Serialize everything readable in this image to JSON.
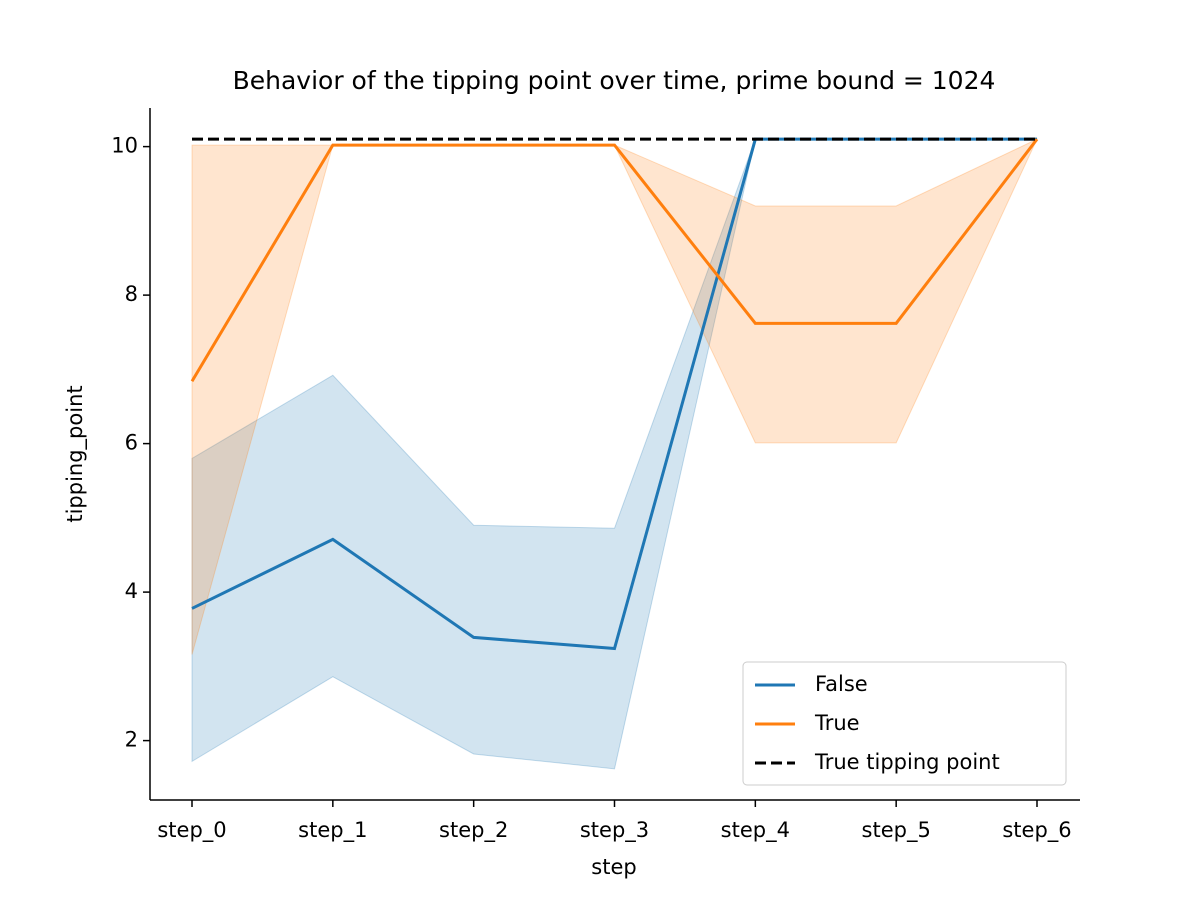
{
  "chart_data": {
    "type": "line",
    "title": "Behavior of the tipping point over time, prime bound = 1024",
    "x_label": "step",
    "y_label": "tipping_point",
    "categories": [
      "step_0",
      "step_1",
      "step_2",
      "step_3",
      "step_4",
      "step_5",
      "step_6"
    ],
    "series": [
      {
        "name": "False",
        "color": "#1f77b4",
        "values": [
          3.78,
          4.71,
          3.39,
          3.24,
          10.1,
          10.1,
          10.1
        ],
        "lower": [
          1.72,
          2.86,
          1.82,
          1.62,
          10.1,
          10.1,
          10.1
        ],
        "upper": [
          5.8,
          6.92,
          4.9,
          4.86,
          10.1,
          10.1,
          10.1
        ]
      },
      {
        "name": "True",
        "color": "#ff7f0e",
        "values": [
          6.84,
          10.02,
          10.02,
          10.02,
          7.62,
          7.62,
          10.1
        ],
        "lower": [
          3.16,
          10.02,
          10.02,
          10.02,
          6.01,
          6.01,
          10.1
        ],
        "upper": [
          10.02,
          10.02,
          10.02,
          10.02,
          9.2,
          9.2,
          10.1
        ]
      }
    ],
    "reference_line": {
      "name": "True tipping point",
      "value": 10.1,
      "color": "#000000"
    },
    "ylim": [
      1.2,
      10.52
    ],
    "yticks": [
      2,
      4,
      6,
      8,
      10
    ],
    "legend": "lower right"
  }
}
